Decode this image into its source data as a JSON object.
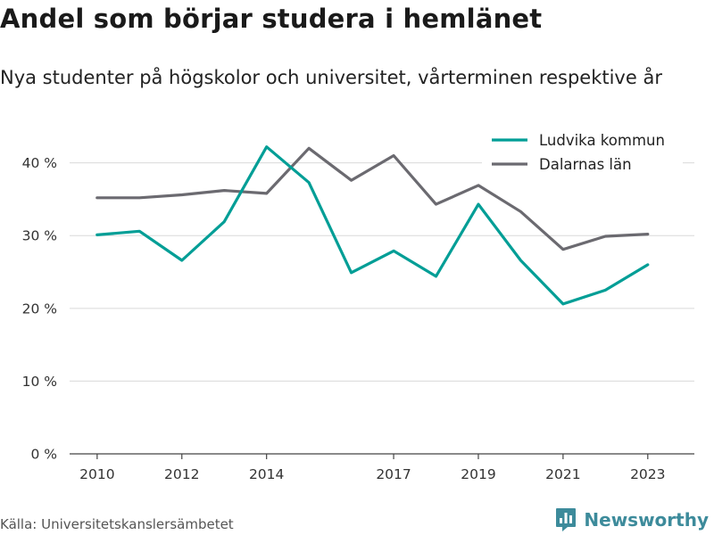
{
  "header": {
    "title": "Andel som börjar studera i hemlänet",
    "subtitle": "Nya studenter på högskolor och universitet, vårterminen respektive år"
  },
  "footer": {
    "source": "Källa: Universitetskanslersämbetet",
    "brand": "Newsworthy",
    "brand_icon": "newsworthy-logo-icon",
    "brand_color": "#3d8b9b"
  },
  "chart_data": {
    "type": "line",
    "title": "Andel som börjar studera i hemlänet",
    "subtitle": "Nya studenter på högskolor och universitet, vårterminen respektive år",
    "xlabel": "",
    "ylabel": "",
    "x": [
      2010,
      2011,
      2012,
      2013,
      2014,
      2015,
      2016,
      2017,
      2018,
      2019,
      2020,
      2021,
      2022,
      2023
    ],
    "x_ticks": [
      "2010",
      "2012",
      "2014",
      "2017",
      "2019",
      "2021",
      "2023"
    ],
    "y_ticks": [
      "0 %",
      "10 %",
      "20 %",
      "30 %",
      "40 %"
    ],
    "ylim": [
      0,
      44
    ],
    "grid": "horizontal",
    "legend_position": "top-right",
    "series": [
      {
        "name": "Ludvika kommun",
        "color": "#009e96",
        "values": [
          30.1,
          30.6,
          26.6,
          31.9,
          42.2,
          37.3,
          24.9,
          27.9,
          24.4,
          34.3,
          26.6,
          20.6,
          22.5,
          26.0
        ]
      },
      {
        "name": "Dalarnas län",
        "color": "#6b6a70",
        "values": [
          35.2,
          35.2,
          35.6,
          36.2,
          35.8,
          42.0,
          37.6,
          41.0,
          34.3,
          36.9,
          33.3,
          28.1,
          29.9,
          30.2
        ]
      }
    ]
  }
}
